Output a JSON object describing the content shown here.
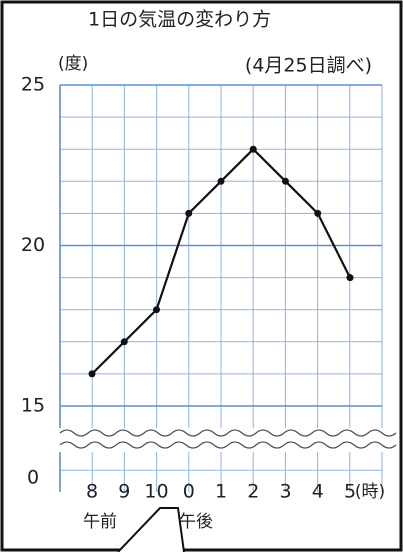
{
  "chart_data": {
    "type": "line",
    "title": "1日の気温の変わり方",
    "y_label": "(度)",
    "subtitle": "(4月25日調べ)",
    "x_unit": "(時)",
    "am_label": "午前",
    "pm_label": "午後",
    "y_origin_label": "0",
    "categories": [
      "8",
      "9",
      "10",
      "0",
      "1",
      "2",
      "3",
      "4",
      "5"
    ],
    "series": [
      {
        "name": "気温",
        "color": "#111111",
        "values": [
          16,
          17,
          18,
          21,
          22,
          23,
          22,
          21,
          19
        ]
      }
    ],
    "ylim": [
      15,
      25
    ],
    "yticks": [
      15,
      20,
      25
    ],
    "grid": true,
    "grid_color": "#8fb4e0"
  }
}
